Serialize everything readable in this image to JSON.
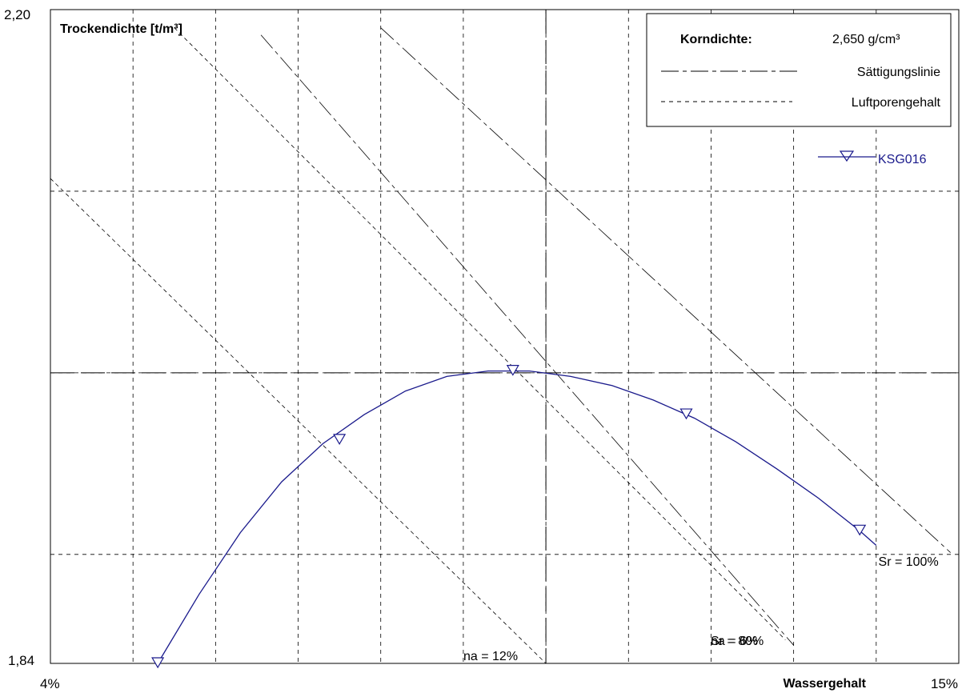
{
  "chart_data": {
    "type": "line",
    "xlabel": "Wassergehalt",
    "ylabel": "Trockendichte [t/m³]",
    "xlim": [
      4,
      15
    ],
    "ylim": [
      1.84,
      2.2
    ],
    "x_tick_labels": [
      "4%",
      "15%"
    ],
    "y_tick_labels": [
      "2,20",
      "1,84"
    ],
    "grid": true,
    "x_gridlines": [
      5,
      6,
      7,
      8,
      9,
      10,
      11,
      12,
      13,
      14
    ],
    "y_gridlines": [
      1.9,
      2.0,
      2.1
    ],
    "proctor": {
      "x": 10.0,
      "y": 2.0
    },
    "series": [
      {
        "name": "KSG016",
        "color": "#1a1a8c",
        "marker": "triangle-down",
        "x": [
          5.3,
          7.5,
          9.6,
          11.7,
          13.8
        ],
        "y": [
          1.84,
          1.963,
          2.001,
          1.977,
          1.913
        ],
        "curve_x": [
          5.3,
          5.8,
          6.3,
          6.8,
          7.3,
          7.8,
          8.3,
          8.8,
          9.3,
          9.8,
          10.3,
          10.8,
          11.3,
          11.8,
          12.3,
          12.8,
          13.3,
          13.8,
          14.0
        ],
        "curve_y": [
          1.84,
          1.878,
          1.912,
          1.94,
          1.961,
          1.977,
          1.99,
          1.998,
          2.001,
          2.001,
          1.998,
          1.993,
          1.985,
          1.975,
          1.962,
          1.947,
          1.931,
          1.913,
          1.905
        ]
      }
    ],
    "reference_lines": [
      {
        "type": "saturation",
        "label": "Sr = 100%",
        "x": [
          8.0,
          14.9
        ],
        "y": [
          2.19,
          1.901
        ]
      },
      {
        "type": "saturation",
        "label": "Sr = 80%",
        "x": [
          6.55,
          13.0
        ],
        "y": [
          2.186,
          1.85
        ]
      },
      {
        "type": "air-voids",
        "label": "na = 6%",
        "x": [
          5.5,
          12.9
        ],
        "y": [
          2.19,
          1.853
        ]
      },
      {
        "type": "air-voids",
        "label": "na = 12%",
        "x": [
          4.0,
          10.0
        ],
        "y": [
          2.107,
          1.84
        ]
      }
    ],
    "legend": {
      "placement": "top-right",
      "korndichte_label": "Korndichte:",
      "korndichte_value": "2,650 g/cm³",
      "saturation_label": "Sättigungslinie",
      "airvoid_label": "Luftporengehalt",
      "series_label": "KSG016"
    }
  }
}
